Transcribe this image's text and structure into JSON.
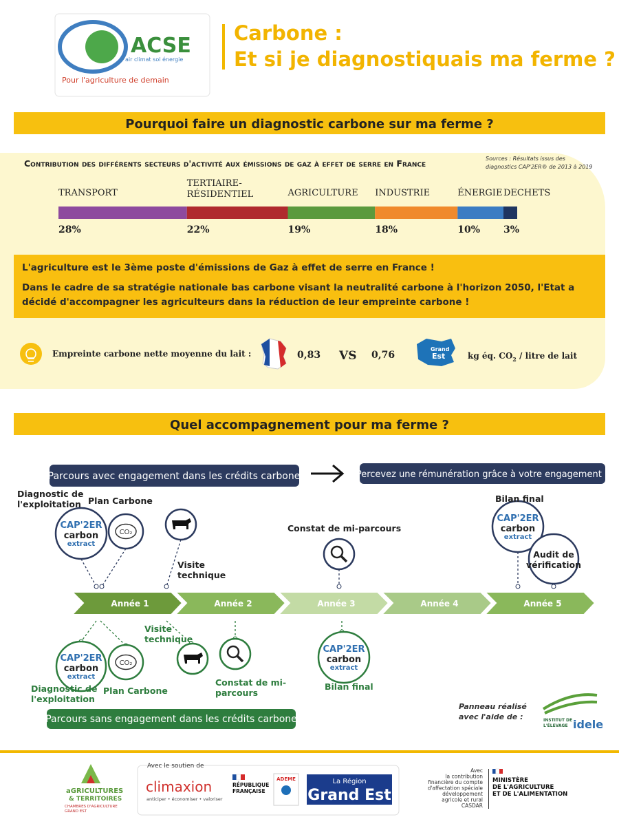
{
  "header": {
    "logo_name": "ACSE",
    "logo_tagline": "air climat sol énergie",
    "logo_slogan": "Pour l'agriculture de demain",
    "title_line1": "Carbone :",
    "title_line2": "Et si je diagnostiquais ma ferme ?"
  },
  "section1": {
    "banner": "Pourquoi faire un diagnostic carbone sur ma ferme ?",
    "chart_title": "Contribution des différents secteurs d'activité aux émissions de gaz à effet de serre en France",
    "sources": [
      "Sources : Résultats issus des",
      "diagnostics CAP'2ER® de 2013 à 2019"
    ],
    "sectors": [
      {
        "name": [
          "TRANSPORT"
        ],
        "value": 28,
        "value_label": "28%",
        "color": "#8e4a9e"
      },
      {
        "name": [
          "TERTIAIRE-",
          "RÉSIDENTIEL"
        ],
        "value": 22,
        "value_label": "22%",
        "color": "#b02a2e"
      },
      {
        "name": [
          "AGRICULTURE"
        ],
        "value": 19,
        "value_label": "19%",
        "color": "#5b9a3d"
      },
      {
        "name": [
          "INDUSTRIE"
        ],
        "value": 18,
        "value_label": "18%",
        "color": "#f08a2c"
      },
      {
        "name": [
          "ÉNERGIE"
        ],
        "value": 10,
        "value_label": "10%",
        "color": "#3b7cc3"
      },
      {
        "name": [
          "DECHETS"
        ],
        "value": 3,
        "value_label": "3%",
        "color": "#1f3561"
      }
    ],
    "highlight": [
      "L'agriculture est le 3ème poste d'émissions de Gaz à effet de serre en France !",
      "Dans le cadre de sa stratégie nationale bas carbone visant la neutralité carbone à l'horizon 2050, l'Etat a décidé d'accompagner les agriculteurs dans la réduction de leur empreinte carbone !"
    ],
    "milk": {
      "label": "Empreinte carbone nette moyenne du lait :",
      "france_value": "0,83",
      "vs": "VS",
      "grand_est_value": "0,76",
      "grand_est_badge": [
        "Grand",
        "Est"
      ],
      "unit_before": "kg éq. CO",
      "unit_sub": "2",
      "unit_after": " / litre de lait"
    }
  },
  "section2": {
    "banner": "Quel accompagnement pour ma ferme ?",
    "with_engagement": "Parcours avec engagement dans les crédits carbone",
    "remuneration": "Percevez une rémunération grâce à votre engagement !",
    "without_engagement": "Parcours sans engagement dans les crédits carbone",
    "badge": {
      "brand": "CAP'2ER",
      "line1": "carbon",
      "line2": "extract"
    },
    "co2_icon": "CO₂",
    "years": [
      "Année 1",
      "Année 2",
      "Année 3",
      "Année 4",
      "Année 5"
    ],
    "above": [
      [
        "Diagnostic de",
        "l'exploitation"
      ],
      [
        "Plan Carbone"
      ],
      [
        "Visite",
        "technique"
      ],
      [
        "Constat de mi-parcours"
      ],
      [
        "Bilan final"
      ],
      [
        "Audit de",
        "vérification"
      ]
    ],
    "below": [
      [
        "Diagnostic de",
        "l'exploitation"
      ],
      [
        "Plan Carbone"
      ],
      [
        "Visite",
        "technique"
      ],
      [
        "Constat de mi-",
        "parcours"
      ],
      [
        "Bilan final"
      ]
    ]
  },
  "footer": {
    "credit": [
      "Panneau réalisé",
      "avec l'aide de :"
    ],
    "idele": [
      "INSTITUT DE",
      "L'ÉLEVAGE",
      "idele"
    ],
    "chambres": [
      "aGRICULTURES",
      "& TERRITOIRES",
      "CHAMBRES D'AGRICULTURE",
      "GRAND EST"
    ],
    "support": "Avec le soutien de",
    "climaxion": "climaxion",
    "climaxion_tag": "anticiper • économiser • valoriser",
    "republique": [
      "RÉPUBLIQUE",
      "FRANÇAISE"
    ],
    "ademe": "ADEME",
    "region": [
      "La Région",
      "Grand Est"
    ],
    "casdar": [
      "Avec",
      "la contribution",
      "financière du compte",
      "d'affectation spéciale",
      "développement",
      "agricole et rural",
      "CASDAR"
    ],
    "ministere": [
      "MINISTÈRE",
      "DE L'AGRICULTURE",
      "ET DE L'ALIMENTATION"
    ]
  }
}
